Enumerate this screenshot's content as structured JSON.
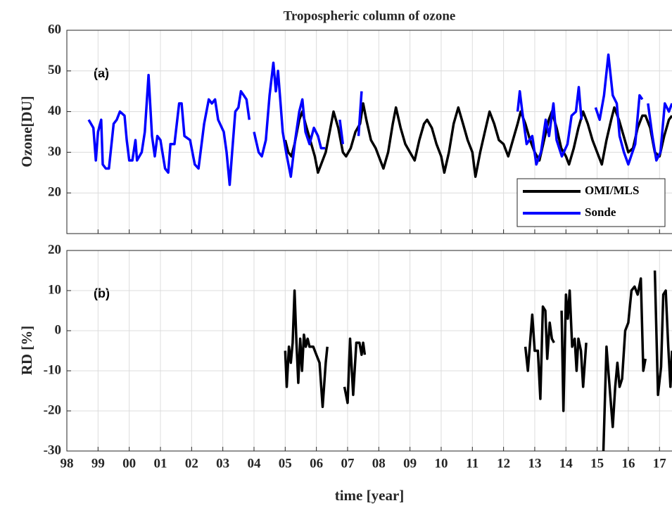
{
  "chart_data": [
    {
      "type": "line",
      "title": "Tropospheric column of ozone",
      "ylabel": "Ozone[DU]",
      "annotation": "(a)",
      "xlim": [
        1998,
        2017.4
      ],
      "ylim": [
        10,
        60
      ],
      "yticks": [
        20,
        30,
        40,
        50,
        60
      ],
      "grid": true,
      "legend": "lower right",
      "series": [
        {
          "name": "OMI/MLS",
          "color": "#000000",
          "x": [
            2005.0,
            2005.1,
            2005.2,
            2005.3,
            2005.45,
            2005.55,
            2005.65,
            2005.8,
            2005.95,
            2006.05,
            2006.15,
            2006.3,
            2006.45,
            2006.55,
            2006.7,
            2006.85,
            2006.95,
            2007.1,
            2007.25,
            2007.4,
            2007.5,
            2007.6,
            2007.75,
            2007.9,
            2008.05,
            2008.15,
            2008.3,
            2008.45,
            2008.55,
            2008.7,
            2008.85,
            2009.0,
            2009.15,
            2009.3,
            2009.45,
            2009.55,
            2009.7,
            2009.85,
            2010.0,
            2010.1,
            2010.25,
            2010.4,
            2010.55,
            2010.7,
            2010.85,
            2011.0,
            2011.1,
            2011.25,
            2011.4,
            2011.55,
            2011.7,
            2011.85,
            2012.0,
            2012.15,
            2012.3,
            2012.45,
            2012.55,
            2012.7,
            2012.85,
            2013.0,
            2013.15,
            2013.3,
            2013.45,
            2013.55,
            2013.7,
            2013.85,
            2014.0,
            2014.1,
            2014.25,
            2014.4,
            2014.55,
            2014.7,
            2014.85,
            2015.0,
            2015.15,
            2015.3,
            2015.45,
            2015.55,
            2015.7,
            2015.85,
            2016.0,
            2016.15,
            2016.3,
            2016.45,
            2016.55,
            2016.7,
            2016.85,
            2017.0,
            2017.15,
            2017.3,
            2017.4
          ],
          "values": [
            33,
            30,
            29,
            32,
            38,
            40,
            37,
            33,
            29,
            25,
            27,
            30,
            36,
            40,
            36,
            30,
            29,
            31,
            35,
            37,
            42,
            38,
            33,
            31,
            28,
            26,
            30,
            37,
            41,
            36,
            32,
            30,
            28,
            33,
            37,
            38,
            36,
            32,
            29,
            25,
            30,
            37,
            41,
            37,
            33,
            30,
            24,
            30,
            35,
            40,
            37,
            33,
            32,
            29,
            33,
            37,
            40,
            37,
            33,
            30,
            28,
            33,
            38,
            40,
            36,
            31,
            29,
            27,
            31,
            36,
            40,
            37,
            33,
            30,
            27,
            33,
            38,
            41,
            38,
            34,
            30,
            31,
            36,
            39,
            39,
            36,
            30,
            29,
            34,
            38,
            39
          ]
        },
        {
          "name": "Sonde",
          "color": "#0000ff",
          "x": [
            1998.7,
            1998.85,
            1998.93,
            1999.0,
            1999.1,
            1999.15,
            1999.25,
            1999.35,
            1999.5,
            1999.6,
            1999.7,
            1999.85,
            1999.92,
            2000.0,
            2000.1,
            2000.2,
            2000.25,
            2000.4,
            2000.5,
            2000.62,
            2000.73,
            2000.82,
            2000.9,
            2001.0,
            2001.15,
            2001.25,
            2001.32,
            2001.45,
            2001.6,
            2001.68,
            2001.77,
            2001.95,
            2002.1,
            2002.22,
            2002.4,
            2002.55,
            2002.65,
            2002.75,
            2002.85,
            2003.03,
            2003.12,
            2003.22,
            2003.3,
            2003.4,
            2003.5,
            2003.58,
            2003.67,
            2003.76,
            2003.85,
            2003.95,
            2004.0,
            2004.15,
            2004.25,
            2004.38,
            2004.5,
            2004.62,
            2004.7,
            2004.77,
            2004.85,
            2004.92,
            2005.03,
            2005.18,
            2005.32,
            2005.45,
            2005.55,
            2005.65,
            2005.78,
            2005.92,
            2006.05,
            2006.15,
            2006.28,
            2006.5,
            2006.75,
            2006.85,
            2007.0,
            2007.35,
            2007.45,
            2008.0,
            2012.45,
            2012.52,
            2012.6,
            2012.74,
            2012.92,
            2013.05,
            2013.2,
            2013.35,
            2013.46,
            2013.6,
            2013.7,
            2013.87,
            2014.05,
            2014.18,
            2014.32,
            2014.41,
            2014.5,
            2014.8,
            2014.95,
            2015.08,
            2015.22,
            2015.36,
            2015.5,
            2015.63,
            2015.72,
            2015.86,
            2016.0,
            2016.13,
            2016.22,
            2016.36,
            2016.45,
            2016.55,
            2016.63,
            2016.77,
            2016.9,
            2017.03,
            2017.17,
            2017.3,
            2017.4
          ],
          "values": [
            38,
            36,
            28,
            35,
            38,
            27,
            26,
            26,
            37,
            38,
            40,
            39,
            33,
            28,
            28,
            33,
            28,
            30,
            35,
            49,
            34,
            29,
            34,
            33,
            26,
            25,
            32,
            32,
            42,
            42,
            34,
            33,
            27,
            26,
            37,
            43,
            42,
            43,
            38,
            35,
            30,
            22,
            30,
            40,
            41,
            45,
            44,
            43,
            38,
            null,
            35,
            30,
            29,
            33,
            44,
            52,
            45,
            50,
            42,
            35,
            30,
            24,
            33,
            40,
            43,
            35,
            32,
            36,
            34,
            31,
            31,
            null,
            38,
            32,
            null,
            34,
            45,
            null,
            40,
            45,
            40,
            32,
            34,
            27,
            30,
            38,
            34,
            42,
            33,
            29,
            32,
            39,
            40,
            46,
            38,
            null,
            41,
            38,
            44,
            54,
            44,
            42,
            34,
            30,
            27,
            30,
            32,
            44,
            43,
            null,
            42,
            34,
            28,
            30,
            42,
            40,
            42
          ]
        }
      ]
    },
    {
      "type": "line",
      "ylabel": "RD [%]",
      "xlabel": "time [year]",
      "annotation": "(b)",
      "xlim": [
        1998,
        2017.4
      ],
      "ylim": [
        -30,
        20
      ],
      "yticks": [
        -30,
        -20,
        -10,
        0,
        10,
        20
      ],
      "grid": true,
      "xticks": [
        {
          "value": 1998,
          "label": "98"
        },
        {
          "value": 1999,
          "label": "99"
        },
        {
          "value": 2000,
          "label": "00"
        },
        {
          "value": 2001,
          "label": "01"
        },
        {
          "value": 2002,
          "label": "02"
        },
        {
          "value": 2003,
          "label": "03"
        },
        {
          "value": 2004,
          "label": "04"
        },
        {
          "value": 2005,
          "label": "05"
        },
        {
          "value": 2006,
          "label": "06"
        },
        {
          "value": 2007,
          "label": "07"
        },
        {
          "value": 2008,
          "label": "08"
        },
        {
          "value": 2009,
          "label": "09"
        },
        {
          "value": 2010,
          "label": "10"
        },
        {
          "value": 2011,
          "label": "11"
        },
        {
          "value": 2012,
          "label": "12"
        },
        {
          "value": 2013,
          "label": "13"
        },
        {
          "value": 2014,
          "label": "14"
        },
        {
          "value": 2015,
          "label": "15"
        },
        {
          "value": 2016,
          "label": "16"
        },
        {
          "value": 2017,
          "label": "17"
        }
      ],
      "series": [
        {
          "color": "#000000",
          "x": [
            2005.0,
            2005.05,
            2005.12,
            2005.18,
            2005.24,
            2005.3,
            2005.36,
            2005.42,
            2005.48,
            2005.54,
            2005.6,
            2005.66,
            2005.72,
            2005.78,
            2005.9,
            2006.0,
            2006.1,
            2006.2,
            2006.3,
            2006.35,
            2006.6,
            2006.9,
            2007.0,
            2007.08,
            2007.18,
            2007.28,
            2007.38,
            2007.45,
            2007.5,
            2007.55,
            2010.0,
            2012.7,
            2012.78,
            2012.85,
            2012.92,
            2013.0,
            2013.1,
            2013.18,
            2013.26,
            2013.34,
            2013.4,
            2013.48,
            2013.55,
            2013.62,
            2013.75,
            2013.86,
            2013.92,
            2014.0,
            2014.06,
            2014.12,
            2014.2,
            2014.28,
            2014.34,
            2014.4,
            2014.48,
            2014.55,
            2014.65,
            2014.9,
            2015.2,
            2015.3,
            2015.42,
            2015.5,
            2015.58,
            2015.65,
            2015.72,
            2015.8,
            2015.9,
            2016.0,
            2016.1,
            2016.2,
            2016.3,
            2016.4,
            2016.48,
            2016.55,
            2016.7,
            2016.85,
            2016.95,
            2017.05,
            2017.12,
            2017.2,
            2017.28,
            2017.35,
            2017.4
          ],
          "values": [
            -5,
            -14,
            -4,
            -8,
            -3,
            10,
            -3,
            -13,
            -2,
            -10,
            -1,
            -4,
            -2,
            -4,
            -4,
            -6,
            -8,
            -19,
            -8,
            -4,
            null,
            -14,
            -18,
            -2,
            -16,
            -3,
            -3,
            -6,
            -3,
            -6,
            null,
            -4,
            -10,
            -3,
            4,
            -5,
            -5,
            -17,
            6,
            5,
            -7,
            2,
            -2,
            -3,
            null,
            5,
            -20,
            9,
            3,
            10,
            -4,
            -2,
            -10,
            -2,
            -5,
            -14,
            -3,
            null,
            -30,
            -4,
            -16,
            -24,
            -14,
            -8,
            -14,
            -12,
            0,
            2,
            10,
            11,
            9,
            13,
            -10,
            -7,
            null,
            15,
            -16,
            -9,
            9,
            10,
            -4,
            -14,
            -5
          ]
        }
      ]
    }
  ]
}
